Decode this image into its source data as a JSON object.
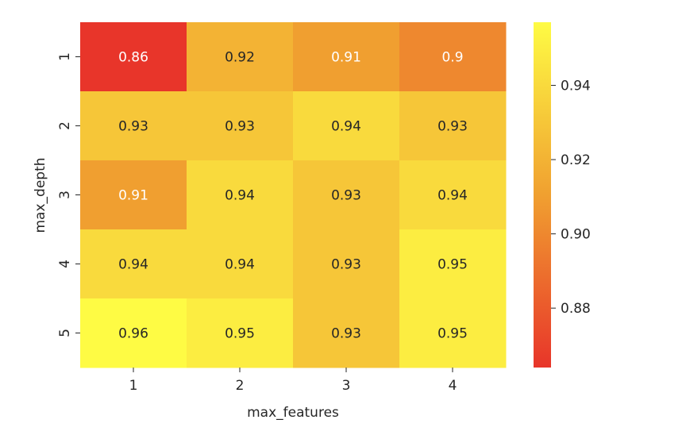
{
  "chart_data": {
    "type": "heatmap",
    "title": "",
    "xlabel": "max_features",
    "ylabel": "max_depth",
    "x_categories": [
      "1",
      "2",
      "3",
      "4"
    ],
    "y_categories": [
      "1",
      "2",
      "3",
      "4",
      "5"
    ],
    "values": [
      [
        0.86,
        0.92,
        0.91,
        0.9
      ],
      [
        0.93,
        0.93,
        0.94,
        0.93
      ],
      [
        0.91,
        0.94,
        0.93,
        0.94
      ],
      [
        0.94,
        0.94,
        0.93,
        0.95
      ],
      [
        0.96,
        0.95,
        0.93,
        0.95
      ]
    ],
    "annotations": [
      [
        "0.86",
        "0.92",
        "0.91",
        "0.9"
      ],
      [
        "0.93",
        "0.93",
        "0.94",
        "0.93"
      ],
      [
        "0.91",
        "0.94",
        "0.93",
        "0.94"
      ],
      [
        "0.94",
        "0.94",
        "0.93",
        "0.95"
      ],
      [
        "0.96",
        "0.95",
        "0.93",
        "0.95"
      ]
    ],
    "colormap": "autumn_r",
    "color_low": "#e8352a",
    "color_mid": "#f0a030",
    "color_high": "#fefb44",
    "vmin": 0.864,
    "vmax": 0.957,
    "colorbar_ticks": [
      0.88,
      0.9,
      0.92,
      0.94
    ],
    "colorbar_tick_labels": [
      "0.88",
      "0.90",
      "0.92",
      "0.94"
    ],
    "light_text_below": 0.915,
    "light_text_color": "#ffffff",
    "dark_text_color": "#262626",
    "grid": false,
    "legend": "colorbar-right"
  }
}
